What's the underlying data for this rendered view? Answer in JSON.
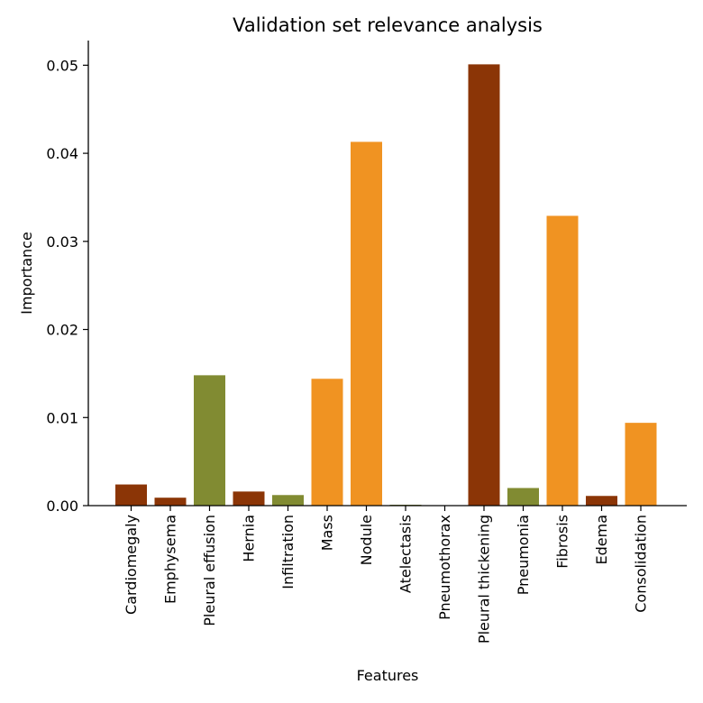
{
  "chart_data": {
    "type": "bar",
    "title": "Validation set relevance analysis",
    "xlabel": "Features",
    "ylabel": "Importance",
    "ylim": [
      0,
      0.0528
    ],
    "yticks": [
      "0.00",
      "0.01",
      "0.02",
      "0.03",
      "0.04",
      "0.05"
    ],
    "ytick_values": [
      0,
      0.01,
      0.02,
      0.03,
      0.04,
      0.05
    ],
    "categories": [
      "Cardiomegaly",
      "Emphysema",
      "Pleural effusion",
      "Hernia",
      "Infiltration",
      "Mass",
      "Nodule",
      "Atelectasis",
      "Pneumothorax",
      "Pleural thickening",
      "Pneumonia",
      "Fibrosis",
      "Edema",
      "Consolidation"
    ],
    "values": [
      0.0024,
      0.0009,
      0.0148,
      0.0016,
      0.0012,
      0.0144,
      0.0413,
      0.0001,
      0.0,
      0.0501,
      0.002,
      0.0329,
      0.0011,
      0.0094
    ],
    "bar_colors": [
      "#8b3506",
      "#8b3506",
      "#818b32",
      "#8b3506",
      "#818b32",
      "#f09322",
      "#f09322",
      "#818b32",
      "#818b32",
      "#8b3506",
      "#818b32",
      "#f09322",
      "#8b3506",
      "#f09322"
    ],
    "grid": false,
    "legend": "none"
  }
}
